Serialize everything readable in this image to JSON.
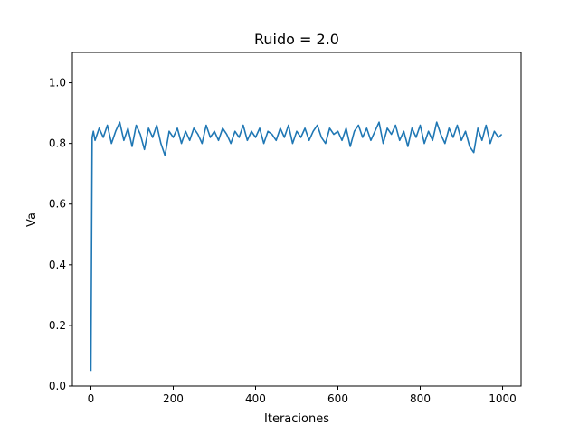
{
  "chart_data": {
    "type": "line",
    "title": "Ruido = 2.0",
    "xlabel": "Iteraciones",
    "ylabel": "Va",
    "xlim": [
      -45,
      1045
    ],
    "ylim": [
      0.0,
      1.1
    ],
    "xticks": [
      0,
      200,
      400,
      600,
      800,
      1000
    ],
    "yticks": [
      0.0,
      0.2,
      0.4,
      0.6,
      0.8,
      1.0
    ],
    "xtick_labels": [
      "0",
      "200",
      "400",
      "600",
      "800",
      "1000"
    ],
    "ytick_labels": [
      "0.0",
      "0.2",
      "0.4",
      "0.6",
      "0.8",
      "1.0"
    ],
    "grid": false,
    "legend": "none",
    "series": [
      {
        "color": "#1f77b4",
        "x": [
          0,
          3,
          6,
          10,
          20,
          30,
          40,
          50,
          60,
          70,
          80,
          90,
          100,
          110,
          120,
          130,
          140,
          150,
          160,
          170,
          180,
          190,
          200,
          210,
          220,
          230,
          240,
          250,
          260,
          270,
          280,
          290,
          300,
          310,
          320,
          330,
          340,
          350,
          360,
          370,
          380,
          390,
          400,
          410,
          420,
          430,
          440,
          450,
          460,
          470,
          480,
          490,
          500,
          510,
          520,
          530,
          540,
          550,
          560,
          570,
          580,
          590,
          600,
          610,
          620,
          630,
          640,
          650,
          660,
          670,
          680,
          690,
          700,
          710,
          720,
          730,
          740,
          750,
          760,
          770,
          780,
          790,
          800,
          810,
          820,
          830,
          840,
          850,
          860,
          870,
          880,
          890,
          900,
          910,
          920,
          930,
          940,
          950,
          960,
          970,
          980,
          990,
          998
        ],
        "values": [
          0.05,
          0.82,
          0.84,
          0.81,
          0.85,
          0.82,
          0.86,
          0.8,
          0.84,
          0.87,
          0.81,
          0.85,
          0.79,
          0.86,
          0.83,
          0.78,
          0.85,
          0.82,
          0.86,
          0.8,
          0.76,
          0.84,
          0.82,
          0.85,
          0.8,
          0.84,
          0.81,
          0.85,
          0.83,
          0.8,
          0.86,
          0.82,
          0.84,
          0.81,
          0.85,
          0.83,
          0.8,
          0.84,
          0.82,
          0.86,
          0.81,
          0.84,
          0.82,
          0.85,
          0.8,
          0.84,
          0.83,
          0.81,
          0.85,
          0.82,
          0.86,
          0.8,
          0.84,
          0.82,
          0.85,
          0.81,
          0.84,
          0.86,
          0.82,
          0.8,
          0.85,
          0.83,
          0.84,
          0.81,
          0.85,
          0.79,
          0.84,
          0.86,
          0.82,
          0.85,
          0.81,
          0.84,
          0.87,
          0.8,
          0.85,
          0.83,
          0.86,
          0.81,
          0.84,
          0.79,
          0.85,
          0.82,
          0.86,
          0.8,
          0.84,
          0.81,
          0.87,
          0.83,
          0.8,
          0.85,
          0.82,
          0.86,
          0.81,
          0.84,
          0.79,
          0.77,
          0.85,
          0.81,
          0.86,
          0.8,
          0.84,
          0.82,
          0.83
        ]
      }
    ]
  }
}
